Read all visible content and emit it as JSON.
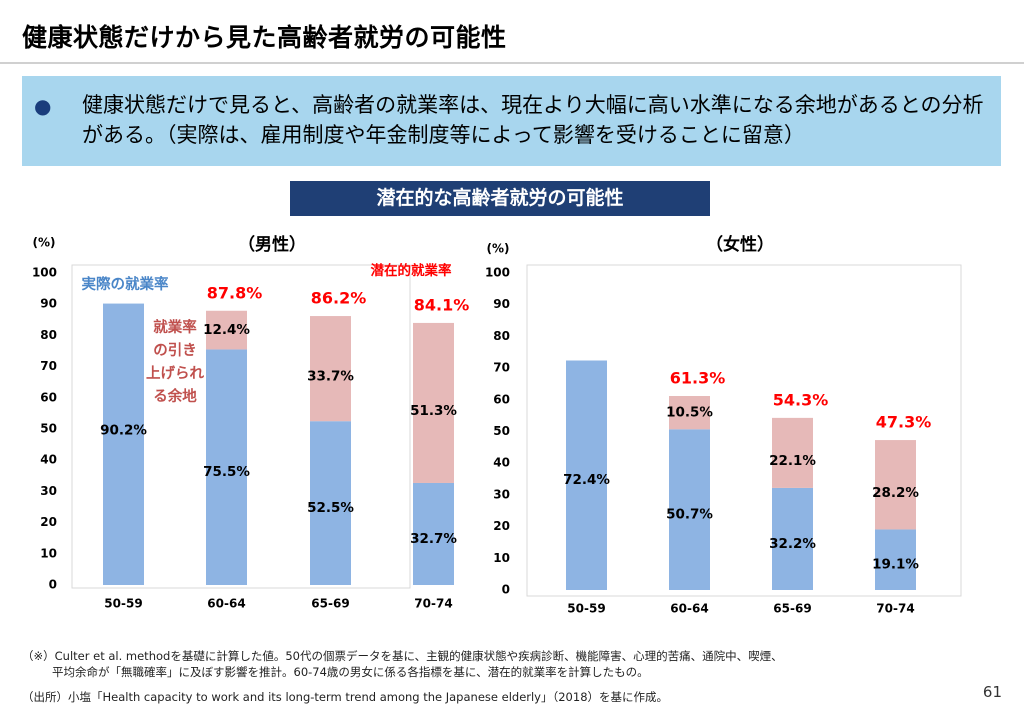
{
  "title": "健康状態だけから見た高齢者就労の可能性",
  "summary": {
    "bullet": "●",
    "text": "健康状態だけで見ると、高齢者の就業率は、現在より大幅に高い水準になる余地があるとの分析がある。（実際は、雇用制度や年金制度等によって影響を受けることに留意）"
  },
  "subtitle": "潜在的な高齢者就労の可能性",
  "colors": {
    "actual": "#8eb4e3",
    "potential": "#e6b9b8",
    "total_label": "#ff0000",
    "annotation_actual": "#4a86c8",
    "annotation_room": "#c0504d"
  },
  "chart_data": [
    {
      "type": "bar",
      "title": "（男性）",
      "ylabel": "(%)",
      "ylim": [
        0,
        100
      ],
      "yticks": [
        "0",
        "10",
        "20",
        "30",
        "40",
        "50",
        "60",
        "70",
        "80",
        "90",
        "100"
      ],
      "categories": [
        "50-59",
        "60-64",
        "65-69",
        "70-74"
      ],
      "series": [
        {
          "name": "実際の就業率",
          "values": [
            90.2,
            75.5,
            52.5,
            32.7
          ],
          "labels": [
            "90.2%",
            "75.5%",
            "52.5%",
            "32.7%"
          ]
        },
        {
          "name": "潜在的就業率",
          "values": [
            0,
            12.4,
            33.7,
            51.3
          ],
          "labels": [
            "",
            "12.4%",
            "33.7%",
            "51.3%"
          ]
        }
      ],
      "totals": [
        "",
        "87.8%",
        "86.2%",
        "84.1%"
      ],
      "annotations": {
        "actual": "実際の就業率",
        "potential": "潜在的就業率",
        "room": [
          "就業率",
          "の引き",
          "上げられ",
          "る余地"
        ]
      }
    },
    {
      "type": "bar",
      "title": "（女性）",
      "ylabel": "(%)",
      "ylim": [
        0,
        100
      ],
      "yticks": [
        "0",
        "10",
        "20",
        "30",
        "40",
        "50",
        "60",
        "70",
        "80",
        "90",
        "100"
      ],
      "categories": [
        "50-59",
        "60-64",
        "65-69",
        "70-74"
      ],
      "series": [
        {
          "name": "実際の就業率",
          "values": [
            72.4,
            50.7,
            32.2,
            19.1
          ],
          "labels": [
            "72.4%",
            "50.7%",
            "32.2%",
            "19.1%"
          ]
        },
        {
          "name": "潜在的就業率",
          "values": [
            0,
            10.5,
            22.1,
            28.2
          ],
          "labels": [
            "",
            "10.5%",
            "22.1%",
            "28.2%"
          ]
        }
      ],
      "totals": [
        "",
        "61.3%",
        "54.3%",
        "47.3%"
      ]
    }
  ],
  "footnote1": "（※）Culter et al. methodを基礎に計算した値。50代の個票データを基に、主観的健康状態や疾病診断、機能障害、心理的苦痛、通院中、喫煙、",
  "footnote2": "平均余命が「無職確率」に及ぼす影響を推計。60-74歳の男女に係る各指標を基に、潜在的就業率を計算したもの。",
  "source": "（出所）小塩「Health capacity to work and its long-term trend among the Japanese elderly」（2018）を基に作成。",
  "page_number": "61"
}
